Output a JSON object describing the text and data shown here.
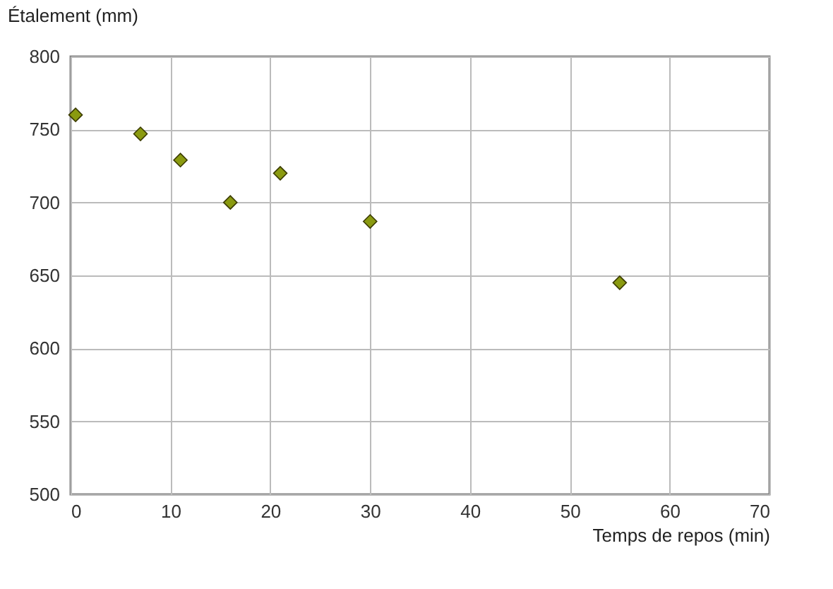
{
  "chart_data": {
    "type": "scatter",
    "x": [
      0.5,
      7,
      11,
      16,
      21,
      30,
      55
    ],
    "series": [
      {
        "color": "#8a9a10",
        "values": [
          760,
          747,
          729,
          700,
          720,
          687,
          645
        ]
      }
    ],
    "xlabel": "Temps de repos (min)",
    "ylabel": "Étalement (mm)",
    "xlim": [
      0,
      70
    ],
    "xticks": [
      0,
      10,
      20,
      30,
      40,
      50,
      60,
      70
    ],
    "ylim": [
      500,
      800
    ],
    "yticks": [
      500,
      550,
      600,
      650,
      700,
      750,
      800
    ],
    "grid": true,
    "marker": "diamond"
  }
}
